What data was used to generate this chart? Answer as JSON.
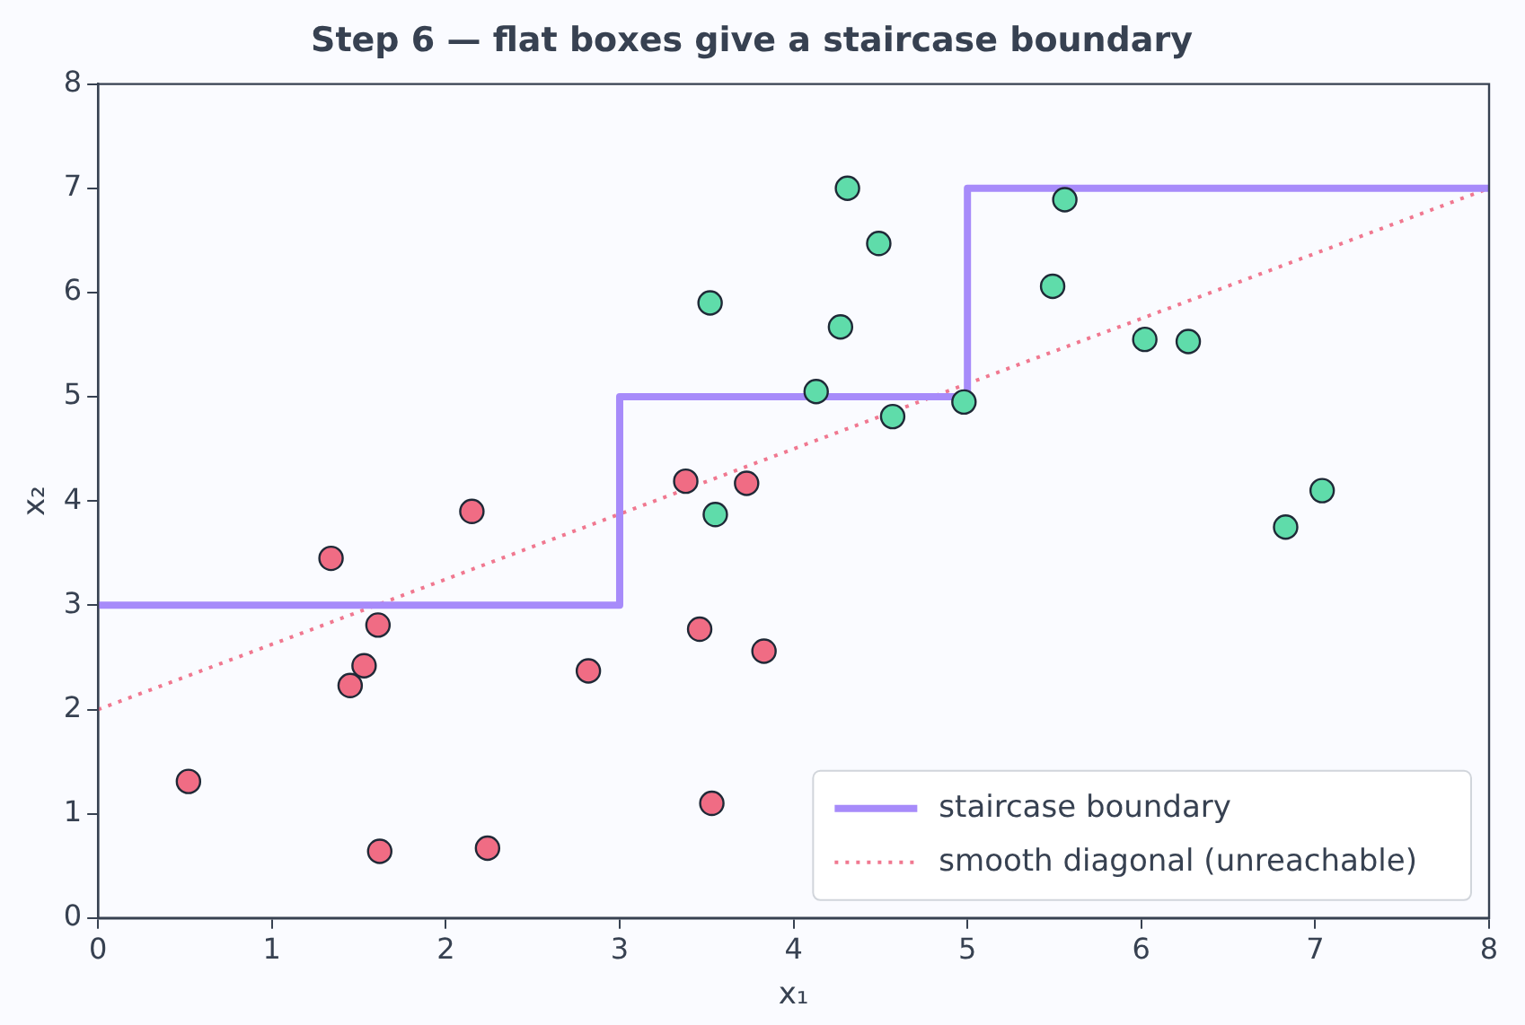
{
  "chart_data": {
    "type": "scatter",
    "title": "Step 6 — flat boxes give a staircase boundary",
    "xlabel": "x₁",
    "ylabel": "x₂",
    "xlim": [
      0,
      8
    ],
    "ylim": [
      0,
      8
    ],
    "xticks": [
      0,
      1,
      2,
      3,
      4,
      5,
      6,
      7,
      8
    ],
    "yticks": [
      0,
      1,
      2,
      3,
      4,
      5,
      6,
      7,
      8
    ],
    "grid": false,
    "legend": "bottom right",
    "series": [
      {
        "marker": "circle",
        "color": "#f06c84",
        "x": [
          0.52,
          1.34,
          1.45,
          1.53,
          1.61,
          1.62,
          2.15,
          2.24,
          2.82,
          3.38,
          3.46,
          3.53,
          3.73,
          3.83
        ],
        "values": [
          1.31,
          3.45,
          2.23,
          2.42,
          2.81,
          0.64,
          3.9,
          0.67,
          2.37,
          4.19,
          2.77,
          1.1,
          4.17,
          2.56
        ]
      },
      {
        "marker": "circle",
        "color": "#5fdcaa",
        "x": [
          3.52,
          3.55,
          4.13,
          4.27,
          4.31,
          4.49,
          4.57,
          4.98,
          5.49,
          5.56,
          6.02,
          6.27,
          6.83,
          7.04
        ],
        "values": [
          5.9,
          3.87,
          5.05,
          5.67,
          7.0,
          6.47,
          4.81,
          4.95,
          6.06,
          6.89,
          5.55,
          5.53,
          3.75,
          4.1
        ]
      },
      {
        "type": "line",
        "name": "staircase boundary",
        "color": "#a78bfa",
        "line_style": "solid",
        "marker": "none",
        "x": [
          0,
          3,
          3,
          5,
          5,
          8
        ],
        "values": [
          3,
          3,
          5,
          5,
          7,
          7
        ]
      },
      {
        "type": "line",
        "name": "smooth diagonal (unreachable)",
        "color": "#f07890",
        "line_style": "dotted",
        "marker": "none",
        "x": [
          0,
          8
        ],
        "values": [
          2,
          7
        ]
      }
    ]
  }
}
